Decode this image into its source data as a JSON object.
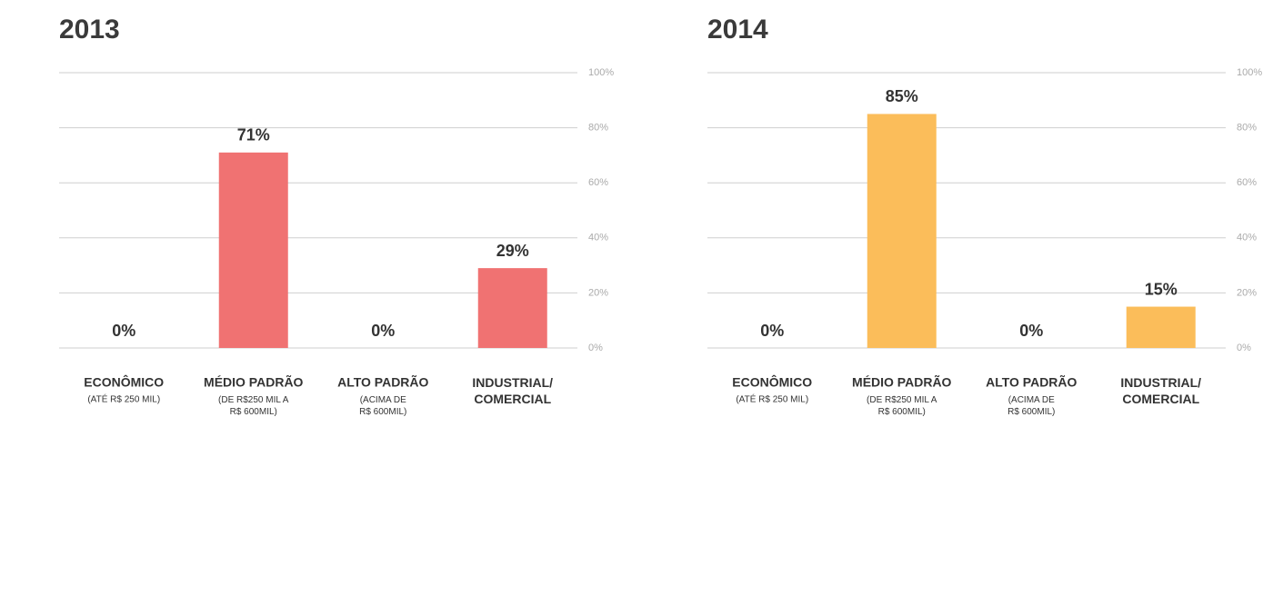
{
  "chart_data": [
    {
      "type": "bar",
      "title": "2013",
      "categories": [
        "ECONÔMICO",
        "MÉDIO PADRÃO",
        "ALTO PADRÃO",
        "INDUSTRIAL/\nCOMERCIAL"
      ],
      "category_notes": [
        "(ATÉ R$ 250 MIL)",
        "(DE R$250 MIL A\nR$ 600MIL)",
        "(ACIMA DE\nR$ 600MIL)",
        null
      ],
      "values": [
        0,
        71,
        0,
        29
      ],
      "value_labels": [
        "0%",
        "71%",
        "0%",
        "29%"
      ],
      "color": "#f07272",
      "ylim": [
        0,
        100
      ],
      "yticks": [
        {
          "value": 0,
          "label": "0%"
        },
        {
          "value": 20,
          "label": "20%"
        },
        {
          "value": 40,
          "label": "40%"
        },
        {
          "value": 60,
          "label": "60%"
        },
        {
          "value": 80,
          "label": "80%"
        },
        {
          "value": 100,
          "label": "100%"
        }
      ],
      "grid": true
    },
    {
      "type": "bar",
      "title": "2014",
      "categories": [
        "ECONÔMICO",
        "MÉDIO PADRÃO",
        "ALTO PADRÃO",
        "INDUSTRIAL/\nCOMERCIAL"
      ],
      "category_notes": [
        "(ATÉ R$ 250 MIL)",
        "(DE R$250 MIL A\nR$ 600MIL)",
        "(ACIMA DE\nR$ 600MIL)",
        null
      ],
      "values": [
        0,
        85,
        0,
        15
      ],
      "value_labels": [
        "0%",
        "85%",
        "0%",
        "15%"
      ],
      "color": "#fbbd5a",
      "ylim": [
        0,
        100
      ],
      "yticks": [
        {
          "value": 0,
          "label": "0%"
        },
        {
          "value": 20,
          "label": "20%"
        },
        {
          "value": 40,
          "label": "40%"
        },
        {
          "value": 60,
          "label": "60%"
        },
        {
          "value": 80,
          "label": "80%"
        },
        {
          "value": 100,
          "label": "100%"
        }
      ],
      "grid": true
    }
  ]
}
